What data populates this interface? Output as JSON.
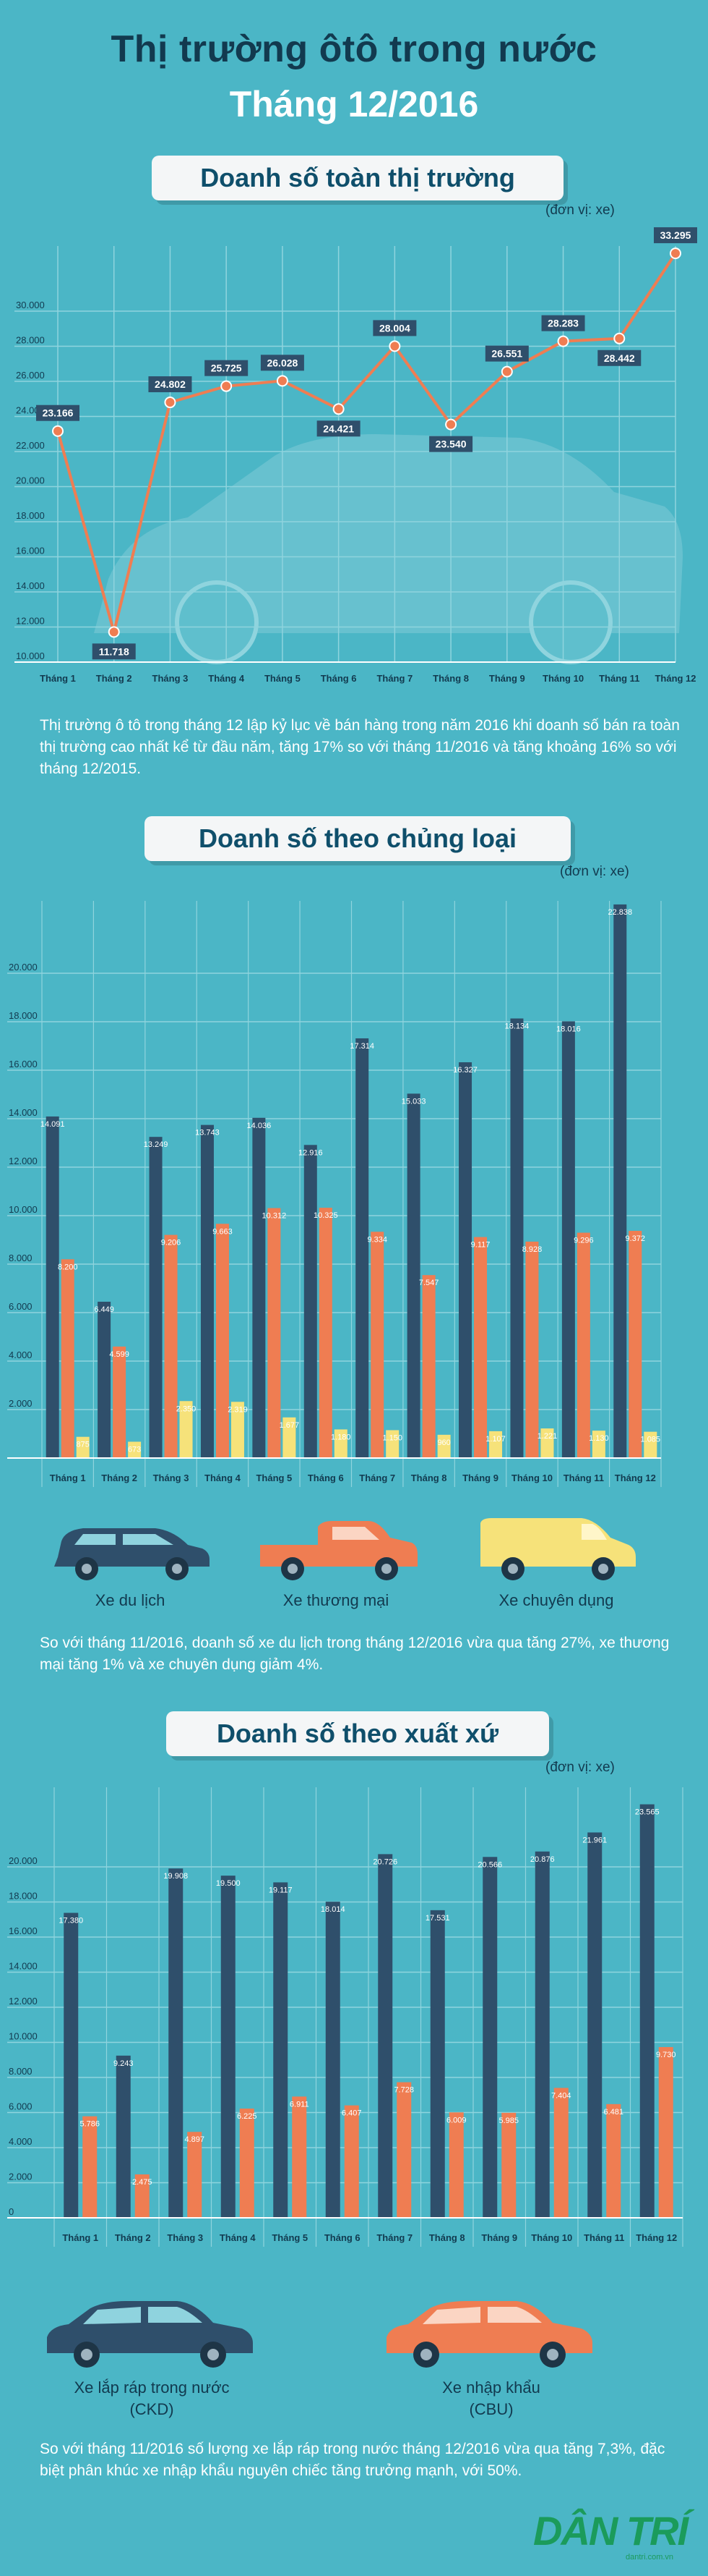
{
  "header": {
    "title": "Thị trường ôtô  trong nước",
    "subtitle": "Tháng 12/2016"
  },
  "section1": {
    "banner": "Doanh số toàn thị trường",
    "unit": "(đơn vị: xe)",
    "paragraph": "Thị trường ô tô trong tháng 12 lập kỷ lục về bán hàng trong năm 2016 khi doanh số bán ra toàn thị trường cao nhất kể từ đầu năm, tăng 17% so với tháng 11/2016 và tăng khoảng 16% so với tháng 12/2015."
  },
  "section2": {
    "banner": "Doanh số theo chủng loại",
    "unit": "(đơn vị: xe)",
    "paragraph": "So với tháng 11/2016, doanh số xe du lịch trong tháng 12/2016 vừa qua tăng 27%, xe thương mại tăng 1% và xe chuyên dụng giảm 4%.",
    "labels": [
      "Xe du lịch",
      "Xe thương mại",
      "Xe chuyên dụng"
    ]
  },
  "section3": {
    "banner": "Doanh số theo xuất xứ",
    "unit": "(đơn vị: xe)",
    "paragraph": "So với tháng 11/2016 số lượng xe lắp ráp trong nước tháng 12/2016 vừa qua tăng 7,3%, đặc biệt phân khúc xe nhập khẩu nguyên chiếc tăng trưởng mạnh, với 50%.",
    "labels": [
      [
        "Xe lắp ráp trong nước",
        "(CKD)"
      ],
      [
        "Xe nhập khẩu",
        "(CBU)"
      ]
    ]
  },
  "logo": {
    "text": "DÂN TRÍ",
    "sub": "dantri.com.vn"
  },
  "colors": {
    "bg": "#4bb6c6",
    "navy": "#2f4f6b",
    "orange": "#ef7d52",
    "yellow": "#f6e27a",
    "line": "#ef7d52"
  },
  "chart_data": [
    {
      "type": "line",
      "categories": [
        "Tháng 1",
        "Tháng 2",
        "Tháng 3",
        "Tháng 4",
        "Tháng 5",
        "Tháng 6",
        "Tháng 7",
        "Tháng 8",
        "Tháng 9",
        "Tháng 10",
        "Tháng 11",
        "Tháng 12"
      ],
      "values": [
        23166,
        11718,
        24802,
        25725,
        26028,
        24421,
        28004,
        23540,
        26551,
        28283,
        28442,
        33295
      ],
      "data_labels": [
        "23.166",
        "11.718",
        "24.802",
        "25.725",
        "26.028",
        "24.421",
        "28.004",
        "23.540",
        "26.551",
        "28.283",
        "28.442",
        "33.295"
      ],
      "yticks": [
        "10.000",
        "12.000",
        "14.000",
        "16.000",
        "18.000",
        "20.000",
        "22.000",
        "24.000",
        "26.000",
        "28.000",
        "30.000"
      ],
      "ylim": [
        10000,
        33295
      ],
      "grid": true
    },
    {
      "type": "bar",
      "categories": [
        "Tháng 1",
        "Tháng 2",
        "Tháng 3",
        "Tháng 4",
        "Tháng 5",
        "Tháng 6",
        "Tháng 7",
        "Tháng 8",
        "Tháng 9",
        "Tháng 10",
        "Tháng 11",
        "Tháng 12"
      ],
      "series": [
        {
          "values": [
            14091,
            6449,
            13249,
            13743,
            14036,
            12916,
            17314,
            15033,
            16327,
            18134,
            18016,
            22838
          ],
          "labels": [
            "14.091",
            "6.449",
            "13.249",
            "13.743",
            "14.036",
            "12.916",
            "17.314",
            "15.033",
            "16.327",
            "18.134",
            "18.016",
            "22.838"
          ]
        },
        {
          "values": [
            8200,
            4599,
            9206,
            9663,
            10312,
            10325,
            9334,
            7547,
            9117,
            8928,
            9296,
            9372
          ],
          "labels": [
            "8.200",
            "4.599",
            "9.206",
            "9.663",
            "10.312",
            "10.325",
            "9.334",
            "7.547",
            "9.117",
            "8.928",
            "9.296",
            "9.372"
          ]
        },
        {
          "values": [
            875,
            673,
            2350,
            2319,
            1677,
            1180,
            1150,
            960,
            1107,
            1221,
            1130,
            1085
          ],
          "labels": [
            "875",
            "673",
            "2.350",
            "2.319",
            "1.677",
            "1.180",
            "1.150",
            "960",
            "1.107",
            "1.221",
            "1.130",
            "1.085"
          ]
        }
      ],
      "yticks": [
        "2.000",
        "4.000",
        "6.000",
        "8.000",
        "10.000",
        "12.000",
        "14.000",
        "16.000",
        "18.000",
        "20.000"
      ],
      "ylim": [
        0,
        22838
      ],
      "grid": true
    },
    {
      "type": "bar",
      "categories": [
        "Tháng 1",
        "Tháng 2",
        "Tháng 3",
        "Tháng 4",
        "Tháng 5",
        "Tháng 6",
        "Tháng 7",
        "Tháng 8",
        "Tháng 9",
        "Tháng 10",
        "Tháng 11",
        "Tháng 12"
      ],
      "series": [
        {
          "values": [
            17380,
            9243,
            19908,
            19500,
            19117,
            18014,
            20726,
            17531,
            20566,
            20876,
            21961,
            23565
          ],
          "labels": [
            "17.380",
            "9.243",
            "19.908",
            "19.500",
            "19.117",
            "18.014",
            "20.726",
            "17.531",
            "20.566",
            "20.876",
            "21.961",
            "23.565"
          ]
        },
        {
          "values": [
            5786,
            2475,
            4897,
            6225,
            6911,
            6407,
            7728,
            6009,
            5985,
            7404,
            6481,
            9730
          ],
          "labels": [
            "5.786",
            "2.475",
            "4.897",
            "6.225",
            "6.911",
            "6.407",
            "7.728",
            "6.009",
            "5.985",
            "7.404",
            "6.481",
            "9.730"
          ]
        }
      ],
      "yticks": [
        "0",
        "2.000",
        "4.000",
        "6.000",
        "8.000",
        "10.000",
        "12.000",
        "14.000",
        "16.000",
        "18.000",
        "20.000"
      ],
      "ylim": [
        0,
        23565
      ],
      "grid": true
    }
  ]
}
